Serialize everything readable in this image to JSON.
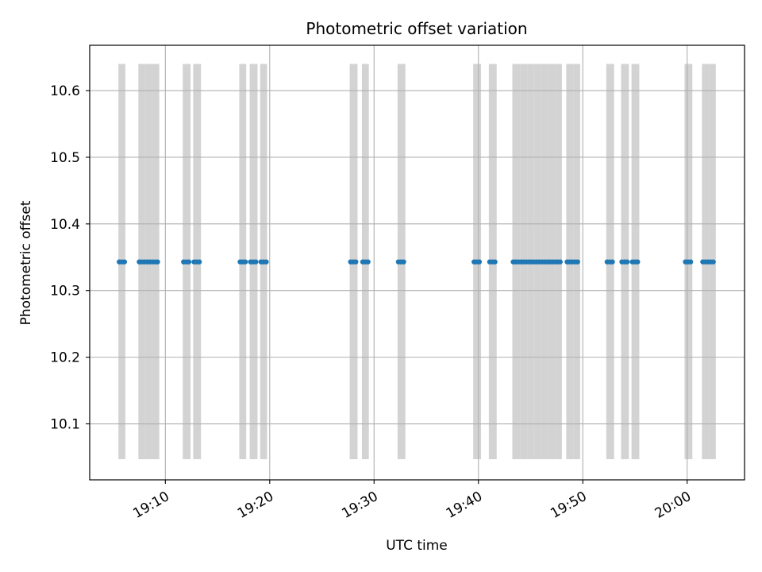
{
  "chart_data": {
    "type": "scatter",
    "title": "Photometric offset variation",
    "xlabel": "UTC time",
    "ylabel": "Photometric offset",
    "xlim": [
      "19:02:45",
      "20:05:30"
    ],
    "ylim": [
      10.016,
      10.668
    ],
    "grid": true,
    "x_ticks": [
      "19:10",
      "19:20",
      "19:30",
      "19:40",
      "19:50",
      "20:00"
    ],
    "y_ticks": [
      10.1,
      10.2,
      10.3,
      10.4,
      10.5,
      10.6
    ],
    "point_color": "#1f77b4",
    "band_color": "#d3d3d3",
    "band_y_range": [
      10.047,
      10.64
    ],
    "bands": [
      [
        "19:05:30",
        "19:06:10"
      ],
      [
        "19:07:25",
        "19:08:05"
      ],
      [
        "19:08:05",
        "19:08:45"
      ],
      [
        "19:08:45",
        "19:09:25"
      ],
      [
        "19:11:40",
        "19:12:25"
      ],
      [
        "19:12:40",
        "19:13:25"
      ],
      [
        "19:17:05",
        "19:17:45"
      ],
      [
        "19:18:05",
        "19:18:50"
      ],
      [
        "19:19:05",
        "19:19:45"
      ],
      [
        "19:27:40",
        "19:28:25"
      ],
      [
        "19:28:50",
        "19:29:30"
      ],
      [
        "19:32:15",
        "19:33:00"
      ],
      [
        "19:39:30",
        "19:40:15"
      ],
      [
        "19:41:00",
        "19:41:45"
      ],
      [
        "19:43:15",
        "19:44:00"
      ],
      [
        "19:44:00",
        "19:44:40"
      ],
      [
        "19:44:40",
        "19:45:20"
      ],
      [
        "19:45:20",
        "19:46:00"
      ],
      [
        "19:46:00",
        "19:46:40"
      ],
      [
        "19:46:40",
        "19:47:20"
      ],
      [
        "19:47:20",
        "19:48:00"
      ],
      [
        "19:48:25",
        "19:49:05"
      ],
      [
        "19:49:05",
        "19:49:45"
      ],
      [
        "19:52:15",
        "19:53:00"
      ],
      [
        "19:53:40",
        "19:54:25"
      ],
      [
        "19:54:40",
        "19:55:25"
      ],
      [
        "19:59:45",
        "20:00:30"
      ],
      [
        "20:01:25",
        "20:02:05"
      ],
      [
        "20:02:05",
        "20:02:45"
      ]
    ],
    "series": [
      {
        "x": [
          "19:05:35",
          "19:05:50",
          "19:06:05",
          "19:07:30",
          "19:07:45",
          "19:08:00",
          "19:08:15",
          "19:08:30",
          "19:08:45",
          "19:09:00",
          "19:09:15",
          "19:11:45",
          "19:12:00",
          "19:12:15",
          "19:12:45",
          "19:13:00",
          "19:13:15",
          "19:17:10",
          "19:17:25",
          "19:17:40",
          "19:18:10",
          "19:18:25",
          "19:18:40",
          "19:19:10",
          "19:19:25",
          "19:19:40",
          "19:27:45",
          "19:28:00",
          "19:28:15",
          "19:28:55",
          "19:29:10",
          "19:29:25",
          "19:32:20",
          "19:32:35",
          "19:32:50",
          "19:39:35",
          "19:39:50",
          "19:40:05",
          "19:41:05",
          "19:41:20",
          "19:41:35",
          "19:43:20",
          "19:43:35",
          "19:43:50",
          "19:44:05",
          "19:44:20",
          "19:44:35",
          "19:44:50",
          "19:45:05",
          "19:45:20",
          "19:45:35",
          "19:45:50",
          "19:46:05",
          "19:46:20",
          "19:46:35",
          "19:46:50",
          "19:47:05",
          "19:47:20",
          "19:47:35",
          "19:47:50",
          "19:48:30",
          "19:48:45",
          "19:49:00",
          "19:49:15",
          "19:49:30",
          "19:52:20",
          "19:52:35",
          "19:52:50",
          "19:53:45",
          "19:54:00",
          "19:54:15",
          "19:54:45",
          "19:55:00",
          "19:55:15",
          "19:59:50",
          "20:00:05",
          "20:00:20",
          "20:01:30",
          "20:01:45",
          "20:02:00",
          "20:02:15",
          "20:02:30"
        ],
        "y": [
          10.343,
          10.343,
          10.343,
          10.343,
          10.343,
          10.343,
          10.343,
          10.343,
          10.343,
          10.343,
          10.343,
          10.343,
          10.343,
          10.343,
          10.343,
          10.343,
          10.343,
          10.343,
          10.343,
          10.343,
          10.343,
          10.343,
          10.343,
          10.343,
          10.343,
          10.343,
          10.343,
          10.343,
          10.343,
          10.343,
          10.343,
          10.343,
          10.343,
          10.343,
          10.343,
          10.343,
          10.343,
          10.343,
          10.343,
          10.343,
          10.343,
          10.343,
          10.343,
          10.343,
          10.343,
          10.343,
          10.343,
          10.343,
          10.343,
          10.343,
          10.343,
          10.343,
          10.343,
          10.343,
          10.343,
          10.343,
          10.343,
          10.343,
          10.343,
          10.343,
          10.343,
          10.343,
          10.343,
          10.343,
          10.343,
          10.343,
          10.343,
          10.343,
          10.343,
          10.343,
          10.343,
          10.343,
          10.343,
          10.343,
          10.343,
          10.343,
          10.343,
          10.343,
          10.343,
          10.343,
          10.343,
          10.343
        ]
      }
    ]
  }
}
